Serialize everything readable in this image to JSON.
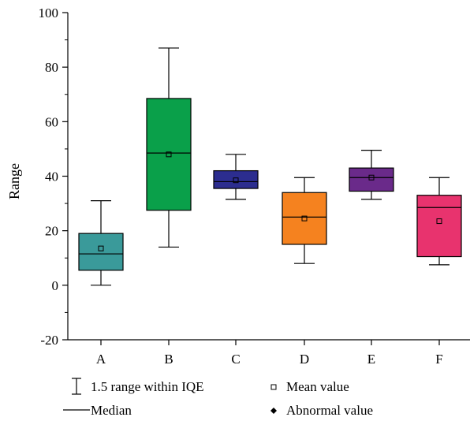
{
  "chart_data": {
    "type": "box",
    "title": "",
    "xlabel": "",
    "ylabel": "Range",
    "ylim": [
      -20,
      100
    ],
    "yticks": [
      "-20",
      "0",
      "20",
      "40",
      "60",
      "80",
      "100"
    ],
    "ytick_values": [
      -20,
      0,
      20,
      40,
      60,
      80,
      100
    ],
    "categories": [
      "A",
      "B",
      "C",
      "D",
      "E",
      "F"
    ],
    "boxes": [
      {
        "category": "A",
        "whisker_low": 0,
        "q1": 5.5,
        "median": 11.5,
        "q3": 19,
        "whisker_high": 31,
        "mean": 13.5,
        "color": "#3a9a9a"
      },
      {
        "category": "B",
        "whisker_low": 14,
        "q1": 27.5,
        "median": 48.5,
        "q3": 68.5,
        "whisker_high": 87,
        "mean": 48,
        "color": "#0aa04a"
      },
      {
        "category": "C",
        "whisker_low": 31.5,
        "q1": 35.5,
        "median": 38,
        "q3": 42,
        "whisker_high": 48,
        "mean": 38.5,
        "color": "#2c2d8f"
      },
      {
        "category": "D",
        "whisker_low": 8,
        "q1": 15,
        "median": 25,
        "q3": 34,
        "whisker_high": 39.5,
        "mean": 24.5,
        "color": "#f5821f"
      },
      {
        "category": "E",
        "whisker_low": 31.5,
        "q1": 34.5,
        "median": 39.5,
        "q3": 43,
        "whisker_high": 49.5,
        "mean": 39.5,
        "color": "#6a2a8a"
      },
      {
        "category": "F",
        "whisker_low": 7.5,
        "q1": 10.5,
        "median": 28.5,
        "q3": 33,
        "whisker_high": 39.5,
        "mean": 23.5,
        "color": "#e8336e"
      }
    ],
    "legend": {
      "placement": "bottom",
      "items": [
        {
          "label": "1.5 range within IQE",
          "symbol": "whisker"
        },
        {
          "label": "Mean value",
          "symbol": "open-square"
        },
        {
          "label": "Median",
          "symbol": "line"
        },
        {
          "label": "Abnormal value",
          "symbol": "filled-diamond"
        }
      ]
    },
    "grid": false
  }
}
